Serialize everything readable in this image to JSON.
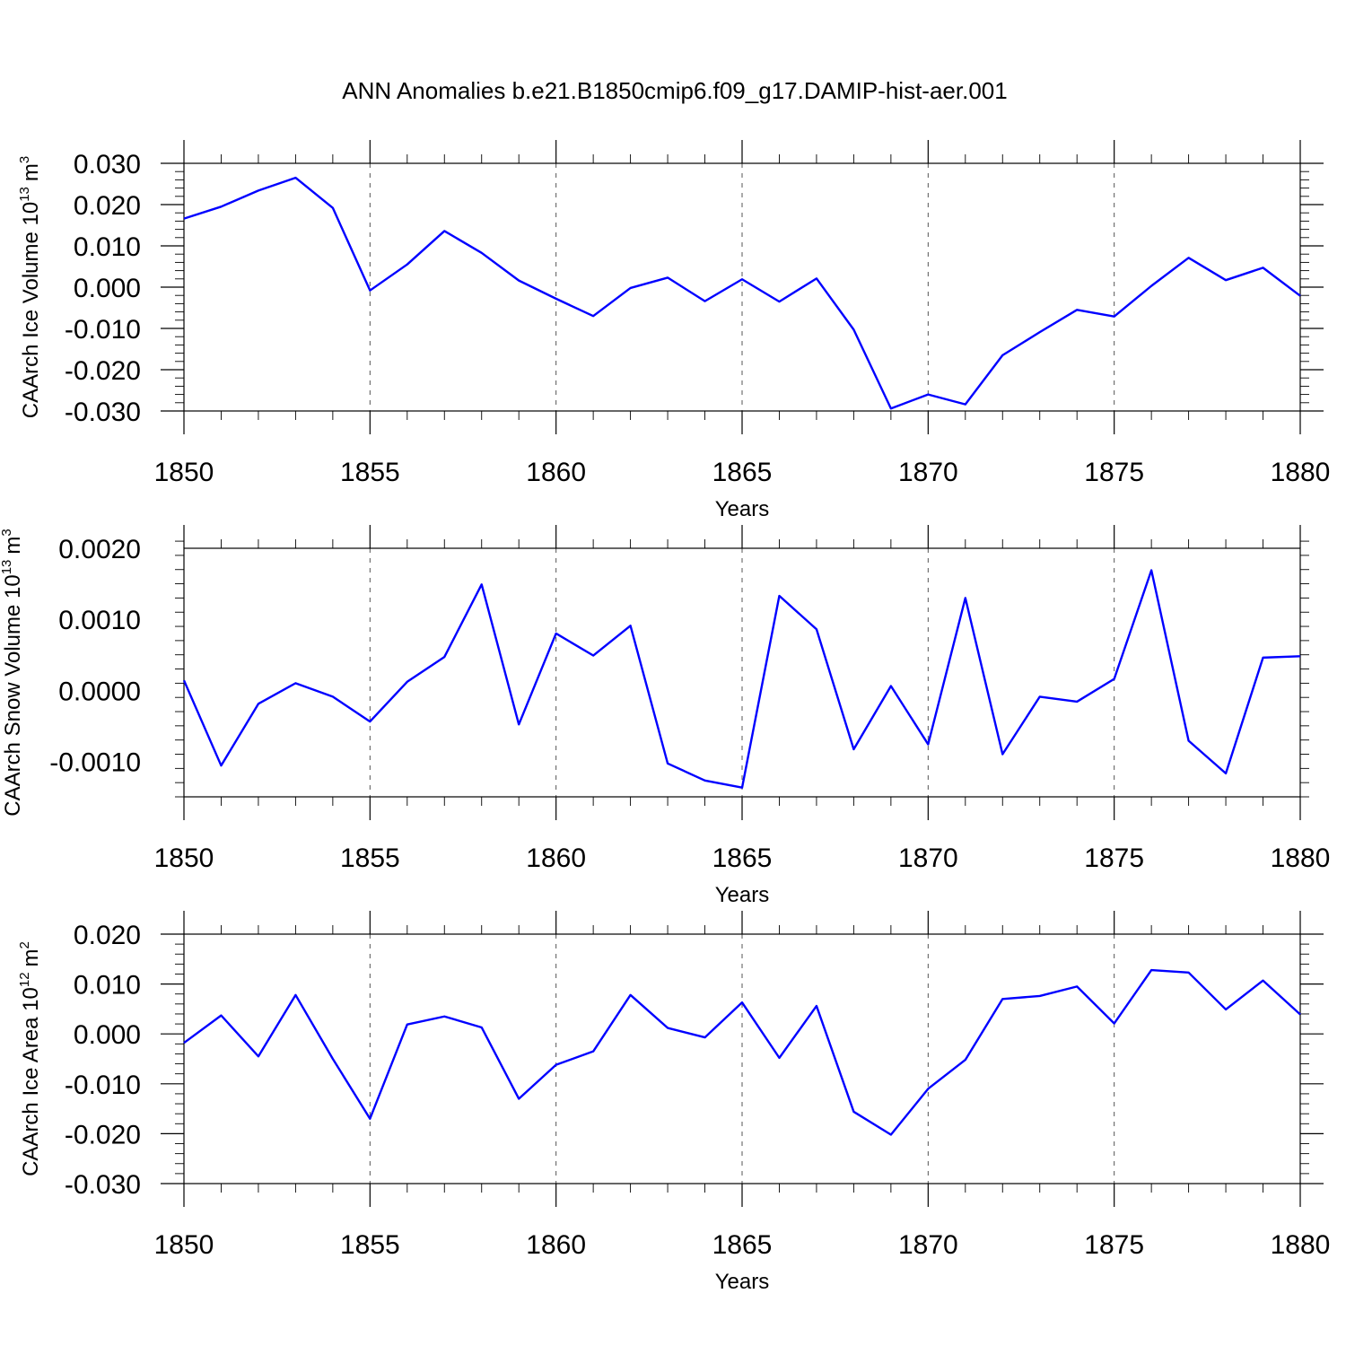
{
  "title": "ANN Anomalies b.e21.B1850cmip6.f09_g17.DAMIP-hist-aer.001",
  "line_color": "#0000ff",
  "chart_data": [
    {
      "type": "line",
      "ylabel": "CAArch Ice Volume 10",
      "ylabel_exp": "13",
      "ylabel_unit": "m",
      "ylabel_unit_exp": "3",
      "xlabel": "Years",
      "xlim": [
        1850,
        1880
      ],
      "ylim": [
        -0.03,
        0.03
      ],
      "yticks": [
        -0.03,
        -0.02,
        -0.01,
        0.0,
        0.01,
        0.02,
        0.03
      ],
      "ytick_labels": [
        "-0.030",
        "-0.020",
        "-0.010",
        "0.000",
        "0.010",
        "0.020",
        "0.030"
      ],
      "xticks": [
        1850,
        1855,
        1860,
        1865,
        1870,
        1875,
        1880
      ],
      "xtick_labels": [
        "1850",
        "1855",
        "1860",
        "1865",
        "1870",
        "1875",
        "1880"
      ],
      "x": [
        1850,
        1851,
        1852,
        1853,
        1854,
        1855,
        1856,
        1857,
        1858,
        1859,
        1860,
        1861,
        1862,
        1863,
        1864,
        1865,
        1866,
        1867,
        1868,
        1869,
        1870,
        1871,
        1872,
        1873,
        1874,
        1875,
        1876,
        1877,
        1878,
        1879,
        1880
      ],
      "values": [
        0.0166,
        0.0195,
        0.0234,
        0.0265,
        0.0192,
        -0.0008,
        0.0055,
        0.0136,
        0.0083,
        0.0016,
        -0.0028,
        -0.007,
        -0.0002,
        0.0023,
        -0.0034,
        0.0019,
        -0.0035,
        0.0021,
        -0.0103,
        -0.0294,
        -0.026,
        -0.0284,
        -0.0165,
        -0.0109,
        -0.0055,
        -0.0071,
        0.0003,
        0.0071,
        0.0017,
        0.0047,
        -0.0021
      ]
    },
    {
      "type": "line",
      "ylabel": "CAArch Snow Volume 10",
      "ylabel_exp": "13",
      "ylabel_unit": "m",
      "ylabel_unit_exp": "3",
      "xlabel": "Years",
      "xlim": [
        1850,
        1880
      ],
      "ylim": [
        -0.0015,
        0.002
      ],
      "yticks": [
        -0.001,
        0.0,
        0.001,
        0.002
      ],
      "ytick_labels": [
        "-0.0010",
        "0.0000",
        "0.0010",
        "0.0020"
      ],
      "xticks": [
        1850,
        1855,
        1860,
        1865,
        1870,
        1875,
        1880
      ],
      "xtick_labels": [
        "1850",
        "1855",
        "1860",
        "1865",
        "1870",
        "1875",
        "1880"
      ],
      "x": [
        1850,
        1851,
        1852,
        1853,
        1854,
        1855,
        1856,
        1857,
        1858,
        1859,
        1860,
        1861,
        1862,
        1863,
        1864,
        1865,
        1866,
        1867,
        1868,
        1869,
        1870,
        1871,
        1872,
        1873,
        1874,
        1875,
        1876,
        1877,
        1878,
        1879,
        1880
      ],
      "values": [
        0.00014,
        -0.00106,
        -0.00019,
        0.0001,
        -9e-05,
        -0.00044,
        0.00012,
        0.00047,
        0.00149,
        -0.00048,
        0.0008,
        0.00049,
        0.00091,
        -0.00103,
        -0.00127,
        -0.00137,
        0.00133,
        0.00086,
        -0.00083,
        6e-05,
        -0.00076,
        0.0013,
        -0.0009,
        -9e-05,
        -0.00016,
        0.00016,
        0.00169,
        -0.00071,
        -0.00117,
        0.00046,
        0.00048
      ]
    },
    {
      "type": "line",
      "ylabel": "CAArch Ice Area 10",
      "ylabel_exp": "12",
      "ylabel_unit": "m",
      "ylabel_unit_exp": "2",
      "xlabel": "Years",
      "xlim": [
        1850,
        1880
      ],
      "ylim": [
        -0.03,
        0.02
      ],
      "yticks": [
        -0.03,
        -0.02,
        -0.01,
        0.0,
        0.01,
        0.02
      ],
      "ytick_labels": [
        "-0.030",
        "-0.020",
        "-0.010",
        "0.000",
        "0.010",
        "0.020"
      ],
      "xticks": [
        1850,
        1855,
        1860,
        1865,
        1870,
        1875,
        1880
      ],
      "xtick_labels": [
        "1850",
        "1855",
        "1860",
        "1865",
        "1870",
        "1875",
        "1880"
      ],
      "x": [
        1850,
        1851,
        1852,
        1853,
        1854,
        1855,
        1856,
        1857,
        1858,
        1859,
        1860,
        1861,
        1862,
        1863,
        1864,
        1865,
        1866,
        1867,
        1868,
        1869,
        1870,
        1871,
        1872,
        1873,
        1874,
        1875,
        1876,
        1877,
        1878,
        1879,
        1880
      ],
      "values": [
        -0.0018,
        0.0037,
        -0.0045,
        0.0078,
        -0.005,
        -0.017,
        0.0019,
        0.0035,
        0.0013,
        -0.013,
        -0.0062,
        -0.0035,
        0.0078,
        0.0012,
        -0.0007,
        0.0063,
        -0.0048,
        0.0056,
        -0.0156,
        -0.0202,
        -0.011,
        -0.0052,
        0.007,
        0.0076,
        0.0095,
        0.0021,
        0.0128,
        0.0123,
        0.0049,
        0.0107,
        0.0039
      ]
    }
  ]
}
